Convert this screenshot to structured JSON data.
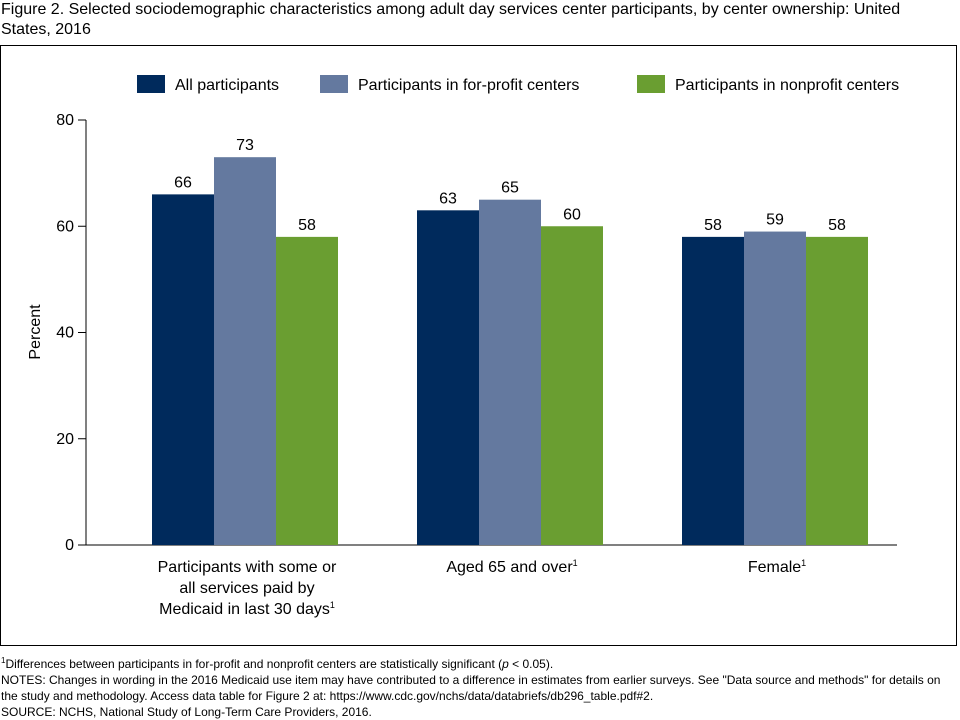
{
  "figure": {
    "title": "Figure 2. Selected sociodemographic characteristics among adult day services center participants, by center ownership: United States, 2016"
  },
  "chart_data": {
    "type": "bar",
    "ylabel": "Percent",
    "ylim": [
      0,
      80
    ],
    "yticks": [
      0,
      20,
      40,
      60,
      80
    ],
    "categories": [
      {
        "lines": [
          "Participants with some or",
          "all services paid by",
          "Medicaid in last 30 days"
        ],
        "footnote": "1"
      },
      {
        "lines": [
          "Aged 65 and over"
        ],
        "footnote": "1"
      },
      {
        "lines": [
          "Female"
        ],
        "footnote": "1"
      }
    ],
    "series": [
      {
        "name": "All participants",
        "color": "#002a5c",
        "values": [
          66,
          63,
          58
        ]
      },
      {
        "name": "Participants in for-profit centers",
        "color": "#64799f",
        "values": [
          73,
          65,
          59
        ]
      },
      {
        "name": "Participants in nonprofit centers",
        "color": "#6a9e31",
        "values": [
          58,
          60,
          58
        ]
      }
    ],
    "legend_position": "top-right"
  },
  "notes": {
    "footnote_marker": "1",
    "footnote_text_a": "Differences between participants in for-profit and nonprofit centers are statistically significant (",
    "footnote_p": "p",
    "footnote_text_b": " < 0.05).",
    "notes_line": "NOTES: Changes in wording in the 2016 Medicaid use item may have contributed to a difference in estimates from earlier surveys. See \"Data source and methods\" for details on the study and methodology. Access data table for Figure 2 at: https://www.cdc.gov/nchs/data/databriefs/db296_table.pdf#2.",
    "source_line": "SOURCE: NCHS, National Study of Long-Term Care Providers, 2016."
  }
}
